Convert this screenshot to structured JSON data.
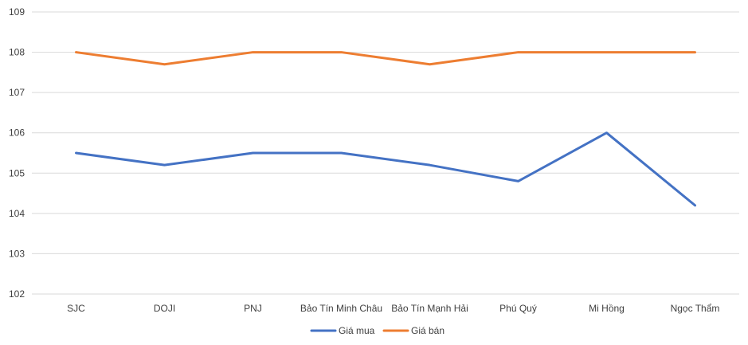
{
  "chart_data": {
    "type": "line",
    "title": "",
    "xlabel": "",
    "ylabel": "",
    "categories": [
      "SJC",
      "DOJI",
      "PNJ",
      "Bảo Tín Minh Châu",
      "Bảo Tín Mạnh Hải",
      "Phú Quý",
      "Mi Hồng",
      "Ngọc Thẩm"
    ],
    "ylim": [
      102,
      109
    ],
    "yticks": [
      102,
      103,
      104,
      105,
      106,
      107,
      108,
      109
    ],
    "grid": "horizontal",
    "legend_position": "bottom",
    "series": [
      {
        "name": "Giá mua",
        "color": "#4472C4",
        "values": [
          105.5,
          105.2,
          105.5,
          105.5,
          105.2,
          104.8,
          106.0,
          104.2
        ]
      },
      {
        "name": "Giá bán",
        "color": "#ED7D31",
        "values": [
          108.0,
          107.7,
          108.0,
          108.0,
          107.7,
          108.0,
          108.0,
          108.0
        ]
      }
    ]
  }
}
